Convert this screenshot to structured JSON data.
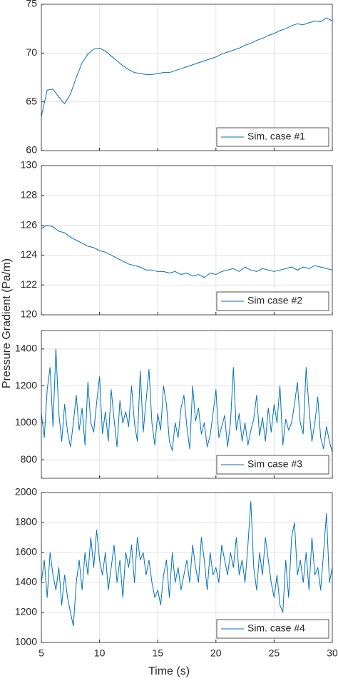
{
  "xlabel": "Time (s)",
  "ylabel": "Pressure Gradient (Pa/m)",
  "chart_data": [
    {
      "type": "line",
      "legend": "lower right",
      "grid": true,
      "x": [
        5,
        5.5,
        6,
        6.5,
        7,
        7.5,
        8,
        8.5,
        9,
        9.5,
        10,
        10.5,
        11,
        11.5,
        12,
        12.5,
        13,
        13.5,
        14,
        14.5,
        15,
        15.5,
        16,
        16.5,
        17,
        17.5,
        18,
        18.5,
        19,
        19.5,
        20,
        20.5,
        21,
        21.5,
        22,
        22.5,
        23,
        23.5,
        24,
        24.5,
        25,
        25.5,
        26,
        26.5,
        27,
        27.5,
        28,
        28.5,
        29,
        29.5,
        30
      ],
      "xlim": [
        5,
        30
      ],
      "xticks": [
        5,
        10,
        15,
        20,
        25,
        30
      ],
      "ylim": [
        60,
        75
      ],
      "yticks": [
        60,
        65,
        70,
        75
      ],
      "series": [
        {
          "name": "Sim. case #1",
          "color": "#0072bd",
          "values": [
            63.5,
            66.2,
            66.3,
            65.5,
            64.8,
            65.8,
            67.5,
            69.0,
            69.9,
            70.4,
            70.5,
            70.2,
            69.7,
            69.2,
            68.7,
            68.3,
            68.0,
            67.9,
            67.8,
            67.8,
            67.9,
            68.0,
            68.0,
            68.2,
            68.4,
            68.6,
            68.8,
            69.0,
            69.2,
            69.4,
            69.6,
            69.9,
            70.1,
            70.3,
            70.5,
            70.8,
            71.0,
            71.3,
            71.5,
            71.8,
            72.0,
            72.3,
            72.5,
            72.8,
            73.0,
            72.9,
            73.1,
            73.3,
            73.2,
            73.6,
            73.3
          ]
        }
      ]
    },
    {
      "type": "line",
      "legend": "lower right",
      "grid": true,
      "x": [
        5,
        5.5,
        6,
        6.5,
        7,
        7.5,
        8,
        8.5,
        9,
        9.5,
        10,
        10.5,
        11,
        11.5,
        12,
        12.5,
        13,
        13.5,
        14,
        14.5,
        15,
        15.5,
        16,
        16.5,
        17,
        17.5,
        18,
        18.5,
        19,
        19.5,
        20,
        20.5,
        21,
        21.5,
        22,
        22.5,
        23,
        23.5,
        24,
        24.5,
        25,
        25.5,
        26,
        26.5,
        27,
        27.5,
        28,
        28.5,
        29,
        29.5,
        30
      ],
      "xlim": [
        5,
        30
      ],
      "xticks": [
        5,
        10,
        15,
        20,
        25,
        30
      ],
      "ylim": [
        120,
        130
      ],
      "yticks": [
        120,
        122,
        124,
        126,
        128,
        130
      ],
      "series": [
        {
          "name": "Sim case #2",
          "color": "#0072bd",
          "values": [
            125.8,
            126.0,
            125.9,
            125.6,
            125.5,
            125.2,
            125.0,
            124.8,
            124.6,
            124.5,
            124.3,
            124.2,
            124.0,
            123.8,
            123.6,
            123.4,
            123.3,
            123.2,
            123.0,
            123.0,
            122.9,
            122.9,
            122.8,
            122.9,
            122.7,
            122.8,
            122.6,
            122.7,
            122.5,
            122.8,
            122.7,
            122.9,
            123.0,
            123.1,
            122.9,
            123.2,
            123.0,
            122.9,
            123.1,
            123.0,
            122.9,
            123.0,
            123.1,
            123.2,
            123.0,
            123.2,
            123.1,
            123.3,
            123.2,
            123.1,
            123.0
          ]
        }
      ]
    },
    {
      "type": "line",
      "legend": "lower right",
      "grid": true,
      "x": [
        5,
        5.25,
        5.5,
        5.75,
        6,
        6.25,
        6.5,
        6.75,
        7,
        7.25,
        7.5,
        7.75,
        8,
        8.25,
        8.5,
        8.75,
        9,
        9.25,
        9.5,
        9.75,
        10,
        10.25,
        10.5,
        10.75,
        11,
        11.25,
        11.5,
        11.75,
        12,
        12.25,
        12.5,
        12.75,
        13,
        13.25,
        13.5,
        13.75,
        14,
        14.25,
        14.5,
        14.75,
        15,
        15.25,
        15.5,
        15.75,
        16,
        16.25,
        16.5,
        16.75,
        17,
        17.25,
        17.5,
        17.75,
        18,
        18.25,
        18.5,
        18.75,
        19,
        19.25,
        19.5,
        19.75,
        20,
        20.25,
        20.5,
        20.75,
        21,
        21.25,
        21.5,
        21.75,
        22,
        22.25,
        22.5,
        22.75,
        23,
        23.25,
        23.5,
        23.75,
        24,
        24.25,
        24.5,
        24.75,
        25,
        25.25,
        25.5,
        25.75,
        26,
        26.25,
        26.5,
        26.75,
        27,
        27.25,
        27.5,
        27.75,
        28,
        28.25,
        28.5,
        28.75,
        29,
        29.25,
        29.5,
        29.75,
        30
      ],
      "xlim": [
        5,
        30
      ],
      "xticks": [
        5,
        10,
        15,
        20,
        25,
        30
      ],
      "ylim": [
        700,
        1500
      ],
      "yticks": [
        800,
        1000,
        1200,
        1400
      ],
      "series": [
        {
          "name": "Sim case #3",
          "color": "#0072bd",
          "values": [
            1050,
            920,
            1180,
            1300,
            980,
            1400,
            1050,
            900,
            1100,
            950,
            870,
            1000,
            1150,
            960,
            1080,
            880,
            1220,
            1000,
            950,
            1110,
            1250,
            940,
            1060,
            900,
            1180,
            1020,
            870,
            1120,
            1000,
            1060,
            980,
            1200,
            1000,
            900,
            1280,
            950,
            1120,
            1290,
            1000,
            880,
            1050,
            960,
            1200,
            1100,
            900,
            850,
            1000,
            920,
            1080,
            1150,
            980,
            860,
            1200,
            1010,
            1080,
            940,
            1000,
            870,
            930,
            1050,
            1180,
            920,
            980,
            1040,
            870,
            1000,
            1300,
            960,
            1050,
            900,
            1000,
            880,
            960,
            1020,
            1150,
            930,
            1030,
            900,
            1080,
            950,
            1100,
            1000,
            1200,
            880,
            1020,
            960,
            1000,
            1100,
            1220,
            1000,
            940,
            1300,
            1080,
            900,
            1000,
            1140,
            920,
            860,
            980,
            900,
            840
          ]
        }
      ]
    },
    {
      "type": "line",
      "legend": "lower right",
      "grid": true,
      "x": [
        5,
        5.25,
        5.5,
        5.75,
        6,
        6.25,
        6.5,
        6.75,
        7,
        7.25,
        7.5,
        7.75,
        8,
        8.25,
        8.5,
        8.75,
        9,
        9.25,
        9.5,
        9.75,
        10,
        10.25,
        10.5,
        10.75,
        11,
        11.25,
        11.5,
        11.75,
        12,
        12.25,
        12.5,
        12.75,
        13,
        13.25,
        13.5,
        13.75,
        14,
        14.25,
        14.5,
        14.75,
        15,
        15.25,
        15.5,
        15.75,
        16,
        16.25,
        16.5,
        16.75,
        17,
        17.25,
        17.5,
        17.75,
        18,
        18.25,
        18.5,
        18.75,
        19,
        19.25,
        19.5,
        19.75,
        20,
        20.25,
        20.5,
        20.75,
        21,
        21.25,
        21.5,
        21.75,
        22,
        22.25,
        22.5,
        22.75,
        23,
        23.25,
        23.5,
        23.75,
        24,
        24.25,
        24.5,
        24.75,
        25,
        25.25,
        25.5,
        25.75,
        26,
        26.25,
        26.5,
        26.75,
        27,
        27.25,
        27.5,
        27.75,
        28,
        28.25,
        28.5,
        28.75,
        29,
        29.25,
        29.5,
        29.75,
        30
      ],
      "xlim": [
        5,
        30
      ],
      "xticks": [
        5,
        10,
        15,
        20,
        25,
        30
      ],
      "ylim": [
        1000,
        2000
      ],
      "yticks": [
        1000,
        1200,
        1400,
        1600,
        1800,
        2000
      ],
      "series": [
        {
          "name": "Sim. case #4",
          "color": "#0072bd",
          "values": [
            1400,
            1550,
            1300,
            1600,
            1450,
            1350,
            1500,
            1250,
            1450,
            1300,
            1200,
            1110,
            1400,
            1550,
            1350,
            1600,
            1450,
            1700,
            1500,
            1750,
            1550,
            1450,
            1600,
            1350,
            1500,
            1650,
            1400,
            1550,
            1300,
            1600,
            1500,
            1650,
            1400,
            1700,
            1550,
            1600,
            1450,
            1550,
            1400,
            1300,
            1350,
            1250,
            1450,
            1550,
            1300,
            1600,
            1400,
            1500,
            1350,
            1450,
            1550,
            1400,
            1650,
            1500,
            1400,
            1700,
            1550,
            1350,
            1600,
            1450,
            1500,
            1400,
            1650,
            1550,
            1450,
            1600,
            1500,
            1700,
            1450,
            1550,
            1400,
            1650,
            1940,
            1500,
            1350,
            1600,
            1450,
            1700,
            1550,
            1400,
            1300,
            1450,
            1250,
            1200,
            1550,
            1300,
            1700,
            1800,
            1450,
            1550,
            1400,
            1600,
            1350,
            1700,
            1450,
            1500,
            1350,
            1600,
            1860,
            1400,
            1500
          ]
        }
      ]
    }
  ]
}
